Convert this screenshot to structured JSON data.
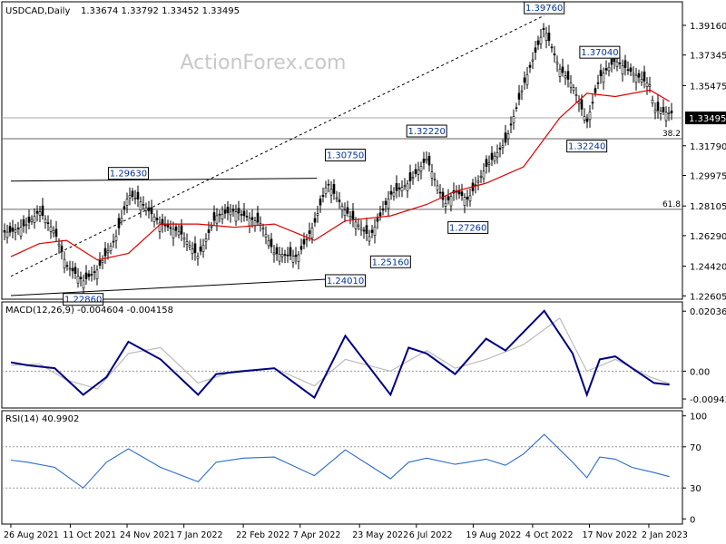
{
  "header": {
    "symbol_label": "USDCAD,Daily",
    "ohlc_label": "1.33674 1.33792 1.33452 1.33495"
  },
  "watermark": "ActionForex.com",
  "chart_data": [
    {
      "type": "candlestick",
      "panel": "price",
      "title": "USDCAD,Daily",
      "ohlc": {
        "open": 1.33674,
        "high": 1.33792,
        "low": 1.33452,
        "close": 1.33495
      },
      "ylim": [
        1.224,
        1.406
      ],
      "y_ticks": [
        1.3916,
        1.37345,
        1.35475,
        1.33495,
        1.3179,
        1.29975,
        1.28105,
        1.2629,
        1.2442,
        1.22605
      ],
      "current_price_label": "1.33495",
      "close_series": {
        "x": [
          "2021-08-26",
          "2021-09-08",
          "2021-09-17",
          "2021-09-29",
          "2021-10-08",
          "2021-10-21",
          "2021-11-01",
          "2021-11-16",
          "2021-11-25",
          "2021-12-03",
          "2021-12-20",
          "2022-01-04",
          "2022-01-18",
          "2022-02-01",
          "2022-02-15",
          "2022-03-08",
          "2022-03-18",
          "2022-04-05",
          "2022-04-18",
          "2022-04-28",
          "2022-05-12",
          "2022-05-31",
          "2022-06-16",
          "2022-06-30",
          "2022-07-14",
          "2022-07-28",
          "2022-08-05",
          "2022-08-15",
          "2022-08-29",
          "2022-09-13",
          "2022-09-27",
          "2022-10-13",
          "2022-10-25",
          "2022-11-04",
          "2022-11-15",
          "2022-11-25",
          "2022-12-07",
          "2022-12-16",
          "2023-01-03",
          "2023-01-06",
          "2023-01-18"
        ],
        "y": [
          1.265,
          1.27,
          1.278,
          1.265,
          1.245,
          1.235,
          1.242,
          1.263,
          1.288,
          1.285,
          1.27,
          1.265,
          1.25,
          1.275,
          1.278,
          1.27,
          1.252,
          1.25,
          1.27,
          1.295,
          1.278,
          1.262,
          1.288,
          1.295,
          1.31,
          1.282,
          1.29,
          1.285,
          1.305,
          1.32,
          1.355,
          1.39,
          1.365,
          1.355,
          1.332,
          1.36,
          1.37,
          1.365,
          1.355,
          1.34,
          1.338
        ]
      },
      "ma_series": {
        "x": [
          "2021-08-26",
          "2021-09-17",
          "2021-10-08",
          "2021-11-01",
          "2021-11-25",
          "2021-12-20",
          "2022-01-18",
          "2022-02-15",
          "2022-03-18",
          "2022-04-18",
          "2022-05-12",
          "2022-06-16",
          "2022-07-14",
          "2022-08-05",
          "2022-08-29",
          "2022-09-27",
          "2022-10-25",
          "2022-11-15",
          "2022-12-07",
          "2023-01-03",
          "2023-01-18"
        ],
        "y": [
          1.25,
          1.258,
          1.26,
          1.248,
          1.252,
          1.27,
          1.27,
          1.268,
          1.27,
          1.26,
          1.272,
          1.275,
          1.282,
          1.29,
          1.295,
          1.305,
          1.335,
          1.35,
          1.348,
          1.352,
          1.345
        ]
      },
      "annotations": [
        {
          "label": "1.39760",
          "x": "2022-10-13",
          "y": 1.3976
        },
        {
          "label": "1.37040",
          "x": "2022-11-25",
          "y": 1.3704
        },
        {
          "label": "1.32220",
          "x": "2022-07-14",
          "y": 1.3222
        },
        {
          "label": "1.32240",
          "x": "2022-11-15",
          "y": 1.3224
        },
        {
          "label": "1.30750",
          "x": "2022-05-12",
          "y": 1.3075
        },
        {
          "label": "1.29630",
          "x": "2021-11-25",
          "y": 1.2963
        },
        {
          "label": "1.27260",
          "x": "2022-08-15",
          "y": 1.2726
        },
        {
          "label": "1.25160",
          "x": "2022-06-16",
          "y": 1.2516
        },
        {
          "label": "1.24010",
          "x": "2022-05-12",
          "y": 1.2401
        },
        {
          "label": "1.22860",
          "x": "2021-10-21",
          "y": 1.2286
        }
      ],
      "fib_levels": [
        {
          "label": "38.2",
          "y": 1.3222
        },
        {
          "label": "61.8",
          "y": 1.279
        }
      ]
    },
    {
      "type": "line",
      "panel": "macd",
      "title": "MACD(12,26,9) -0.004604 -0.004158",
      "ylim": [
        -0.0125,
        0.0235
      ],
      "y_ticks": [
        0.02036,
        0.0,
        -0.009438
      ],
      "y_tick_labels": [
        "0.02036",
        "0.00",
        "-0.009438"
      ],
      "series": [
        {
          "x": [
            "2021-08-26",
            "2021-09-08",
            "2021-09-29",
            "2021-10-21",
            "2021-11-08",
            "2021-11-25",
            "2021-12-20",
            "2022-01-18",
            "2022-02-01",
            "2022-02-22",
            "2022-03-18",
            "2022-04-18",
            "2022-05-12",
            "2022-06-16",
            "2022-06-30",
            "2022-07-14",
            "2022-08-05",
            "2022-08-29",
            "2022-09-13",
            "2022-10-13",
            "2022-11-04",
            "2022-11-15",
            "2022-11-25",
            "2022-12-07",
            "2022-12-20",
            "2023-01-06",
            "2023-01-18"
          ],
          "values": [
            0.003,
            0.002,
            0.001,
            -0.008,
            -0.002,
            0.01,
            0.004,
            -0.008,
            -0.001,
            0.0,
            0.001,
            -0.009,
            0.012,
            -0.008,
            0.008,
            0.006,
            -0.001,
            0.011,
            0.007,
            0.0205,
            0.006,
            -0.008,
            0.004,
            0.005,
            0.001,
            -0.004,
            -0.0046
          ]
        },
        {
          "x": [
            "2021-08-26",
            "2021-09-17",
            "2021-10-08",
            "2021-11-01",
            "2021-11-25",
            "2021-12-20",
            "2022-01-18",
            "2022-02-15",
            "2022-03-18",
            "2022-04-18",
            "2022-05-12",
            "2022-06-16",
            "2022-07-14",
            "2022-08-05",
            "2022-08-29",
            "2022-09-27",
            "2022-10-25",
            "2022-11-15",
            "2022-12-07",
            "2023-01-03",
            "2023-01-18"
          ],
          "values": [
            0.002,
            0.0025,
            -0.003,
            -0.006,
            0.006,
            0.008,
            -0.004,
            0.0,
            0.001,
            -0.005,
            0.004,
            0.0,
            0.007,
            0.001,
            0.004,
            0.009,
            0.018,
            0.0,
            0.004,
            -0.002,
            -0.0042
          ]
        }
      ]
    },
    {
      "type": "line",
      "panel": "rsi",
      "title": "RSI(14) 40.9902",
      "ylim": [
        -5,
        105
      ],
      "y_ticks": [
        100,
        70,
        30,
        0
      ],
      "series": [
        {
          "x": [
            "2021-08-26",
            "2021-09-08",
            "2021-09-29",
            "2021-10-21",
            "2021-11-08",
            "2021-11-25",
            "2021-12-20",
            "2022-01-18",
            "2022-02-01",
            "2022-02-22",
            "2022-03-18",
            "2022-04-18",
            "2022-05-12",
            "2022-06-16",
            "2022-06-30",
            "2022-07-14",
            "2022-08-05",
            "2022-08-29",
            "2022-09-13",
            "2022-09-27",
            "2022-10-13",
            "2022-11-04",
            "2022-11-15",
            "2022-11-25",
            "2022-12-07",
            "2022-12-20",
            "2023-01-06",
            "2023-01-18"
          ],
          "values": [
            57,
            55,
            50,
            30,
            55,
            68,
            50,
            36,
            55,
            59,
            60,
            42,
            67,
            39,
            55,
            59,
            53,
            58,
            52,
            63,
            82,
            55,
            40,
            60,
            58,
            50,
            45,
            41
          ]
        }
      ]
    }
  ],
  "x_axis": {
    "tick_labels": [
      "26 Aug 2021",
      "11 Oct 2021",
      "24 Nov 2021",
      "7 Jan 2022",
      "22 Feb 2022",
      "7 Apr 2022",
      "23 May 2022",
      "6 Jul 2022",
      "19 Aug 2022",
      "4 Oct 2022",
      "17 Nov 2022",
      "2 Jan 2023"
    ]
  },
  "colors": {
    "candle": "#000000",
    "ma_line": "#e00000",
    "macd_line": "#000080",
    "signal_line": "#bbbbbb",
    "rsi_line": "#2a6acc",
    "label_text": "#003399",
    "label_border": "#000000",
    "watermark": "#c8c8c8",
    "grid_ref": "#888888"
  }
}
